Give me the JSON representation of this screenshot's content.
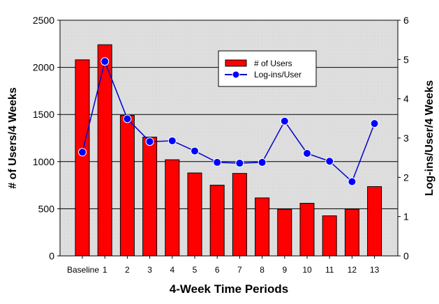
{
  "chart_data": {
    "type": "bar+line",
    "title": "",
    "xlabel": "4-Week Time Periods",
    "ylabel": "# of Users/4 Weeks",
    "y2label": "Log-ins/User/4 Weeks",
    "categories": [
      "Baseline",
      "1",
      "2",
      "3",
      "4",
      "5",
      "6",
      "7",
      "8",
      "9",
      "10",
      "11",
      "12",
      "13"
    ],
    "ylim": [
      0,
      2500
    ],
    "y2lim": [
      0,
      6
    ],
    "yticks": [
      "0",
      "500",
      "1000",
      "1500",
      "2000",
      "2500"
    ],
    "y2ticks": [
      "0",
      "1",
      "2",
      "3",
      "4",
      "5",
      "6"
    ],
    "grid": true,
    "legend_position": "top-right",
    "series": [
      {
        "name": "# of Users",
        "type": "bar",
        "axis": "left",
        "color": "#ff0000",
        "values": [
          2080,
          2240,
          1490,
          1260,
          1020,
          880,
          750,
          875,
          615,
          495,
          558,
          425,
          495,
          735
        ]
      },
      {
        "name": "Log-ins/User",
        "type": "line",
        "axis": "right",
        "color": "#0000cc",
        "values": [
          2.64,
          4.95,
          3.49,
          2.91,
          2.93,
          2.67,
          2.38,
          2.36,
          2.38,
          3.43,
          2.61,
          2.41,
          1.89,
          3.37
        ]
      }
    ]
  }
}
